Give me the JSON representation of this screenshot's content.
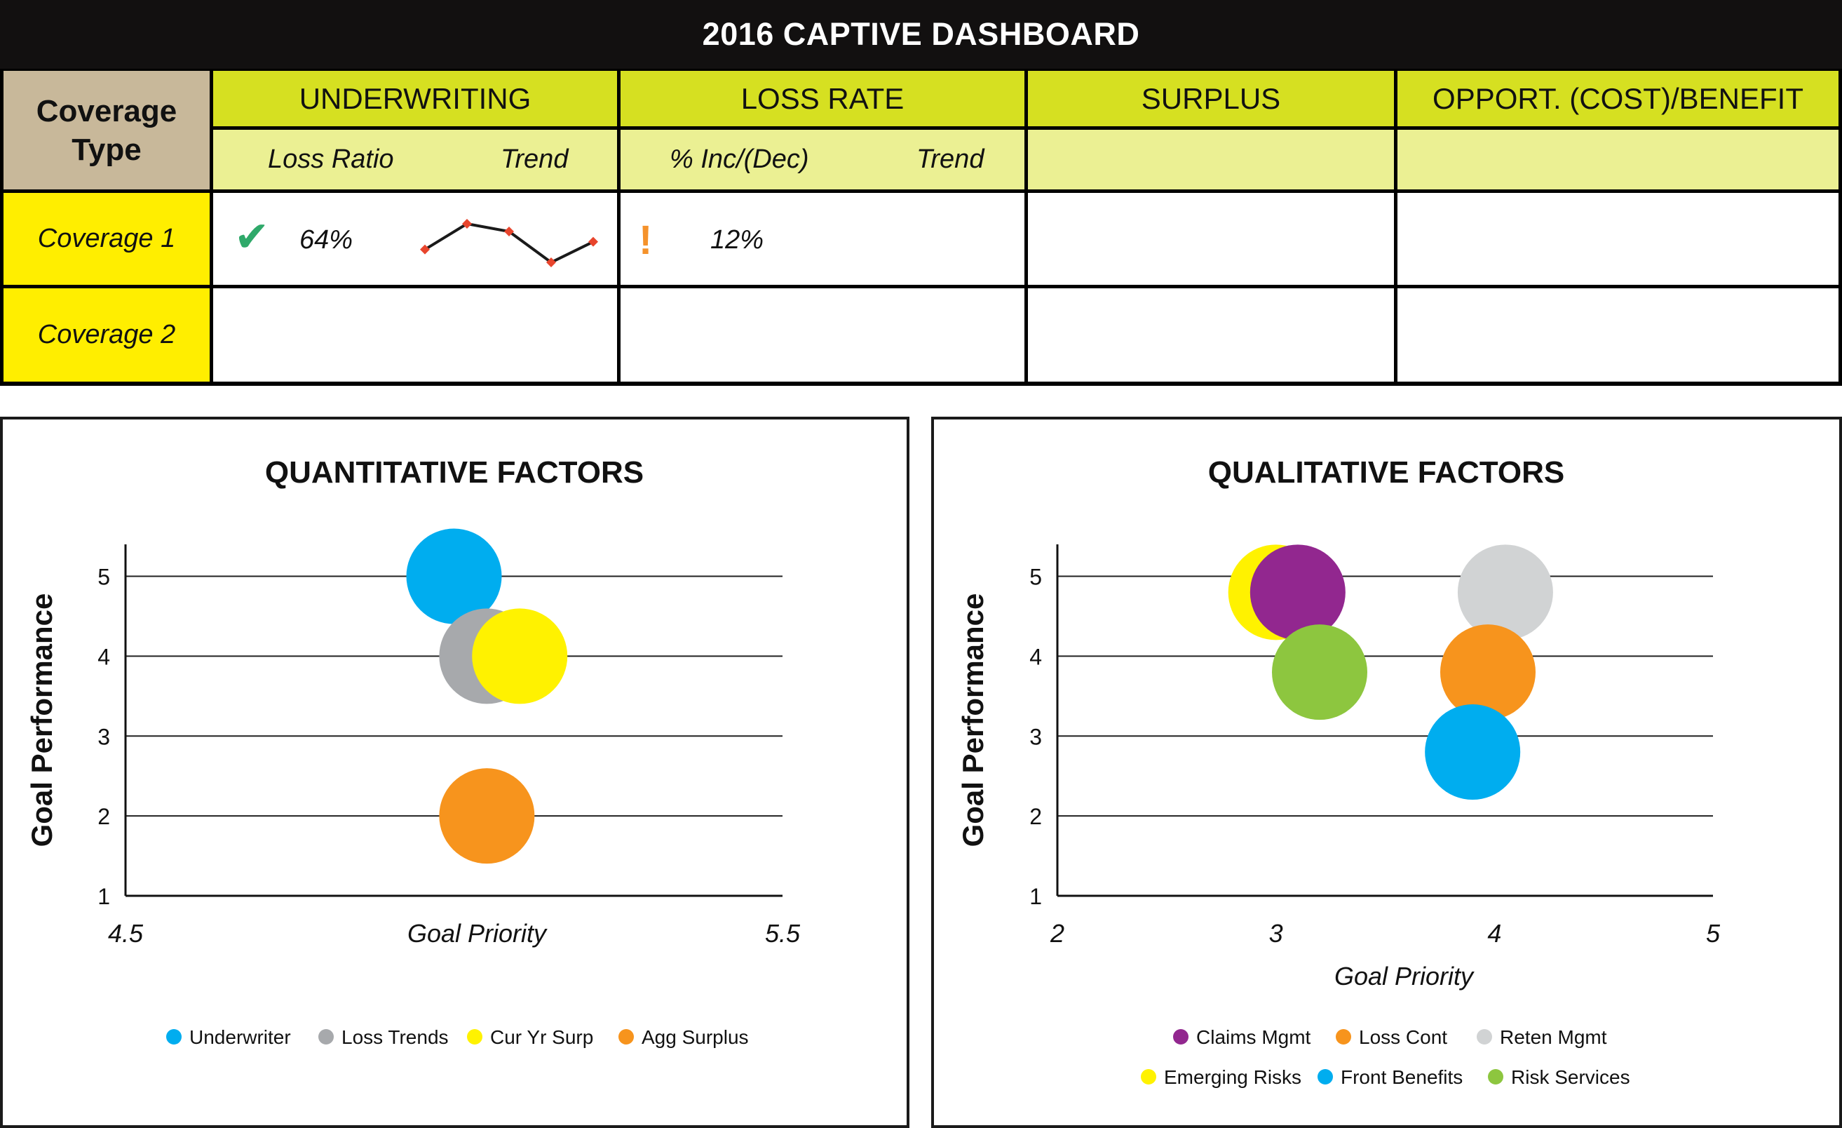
{
  "dashboard": {
    "title": "2016 CAPTIVE DASHBOARD",
    "coverage_type_header": [
      "Coverage",
      "Type"
    ],
    "columns": {
      "underwriting": "UNDERWRITING",
      "loss_rate": "LOSS RATE",
      "surplus": "SURPLUS",
      "opportunity": "OPPORT. (COST)/BENEFIT"
    },
    "subheaders": {
      "loss_ratio": "Loss Ratio",
      "underwriting_trend": "Trend",
      "inc_dec": "% Inc/(Dec)",
      "loss_rate_trend": "Trend"
    },
    "rows": [
      {
        "name": "Coverage 1",
        "loss_ratio": "64%",
        "loss_ratio_status_icon": "check-icon",
        "trend_values": [
          2,
          4,
          3.4,
          1,
          2.6
        ],
        "inc_dec": "12%",
        "inc_dec_status_icon": "alert-icon",
        "inc_dec_icon_glyph": "!"
      },
      {
        "name": "Coverage 2"
      }
    ],
    "colors": {
      "check": "#2fa96a",
      "alert": "#f5922b",
      "trend_line": "#1a1a1a",
      "trend_marker": "#e8452d"
    }
  },
  "chart_data": [
    {
      "type": "scatter",
      "title": "QUANTITATIVE FACTORS",
      "xlabel": "Goal Priority",
      "ylabel": "Goal Performance",
      "xlim": [
        4.5,
        5.5
      ],
      "ylim": [
        1,
        5.4
      ],
      "x_ticks": [
        4.5,
        5.5
      ],
      "y_ticks": [
        1,
        2,
        3,
        4,
        5
      ],
      "grid": "horizontal",
      "legend_position": "bottom",
      "series": [
        {
          "name": "Underwriter",
          "color": "#00adef",
          "points": [
            {
              "x": 5.0,
              "y": 5.0
            }
          ]
        },
        {
          "name": "Loss Trends",
          "color": "#a7a9ac",
          "points": [
            {
              "x": 5.05,
              "y": 4.0
            }
          ]
        },
        {
          "name": "Cur Yr Surp",
          "color": "#fff200",
          "points": [
            {
              "x": 5.1,
              "y": 4.0
            }
          ]
        },
        {
          "name": "Agg Surplus",
          "color": "#f7941d",
          "points": [
            {
              "x": 5.05,
              "y": 2.0
            }
          ]
        }
      ]
    },
    {
      "type": "scatter",
      "title": "QUALITATIVE FACTORS",
      "xlabel": "Goal Priority",
      "ylabel": "Goal Performance",
      "xlim": [
        2,
        5
      ],
      "ylim": [
        1,
        5.4
      ],
      "x_ticks": [
        2,
        3,
        4,
        5
      ],
      "y_ticks": [
        1,
        2,
        3,
        4,
        5
      ],
      "grid": "horizontal",
      "legend_position": "bottom",
      "series": [
        {
          "name": "Emerging Risks",
          "color": "#fff200",
          "points": [
            {
              "x": 3.0,
              "y": 4.8
            }
          ]
        },
        {
          "name": "Claims Mgmt",
          "color": "#92278f",
          "points": [
            {
              "x": 3.1,
              "y": 4.8
            }
          ]
        },
        {
          "name": "Risk Services",
          "color": "#8dc63f",
          "points": [
            {
              "x": 3.2,
              "y": 3.8
            }
          ]
        },
        {
          "name": "Reten Mgmt",
          "color": "#d1d3d4",
          "points": [
            {
              "x": 4.05,
              "y": 4.8
            }
          ]
        },
        {
          "name": "Loss Cont",
          "color": "#f7941d",
          "points": [
            {
              "x": 3.97,
              "y": 3.8
            }
          ]
        },
        {
          "name": "Front Benefits",
          "color": "#00adef",
          "points": [
            {
              "x": 3.9,
              "y": 2.8
            }
          ]
        }
      ],
      "legend_order": [
        "Claims Mgmt",
        "Loss Cont",
        "Reten Mgmt",
        "Emerging Risks",
        "Front Benefits",
        "Risk Services"
      ]
    }
  ]
}
